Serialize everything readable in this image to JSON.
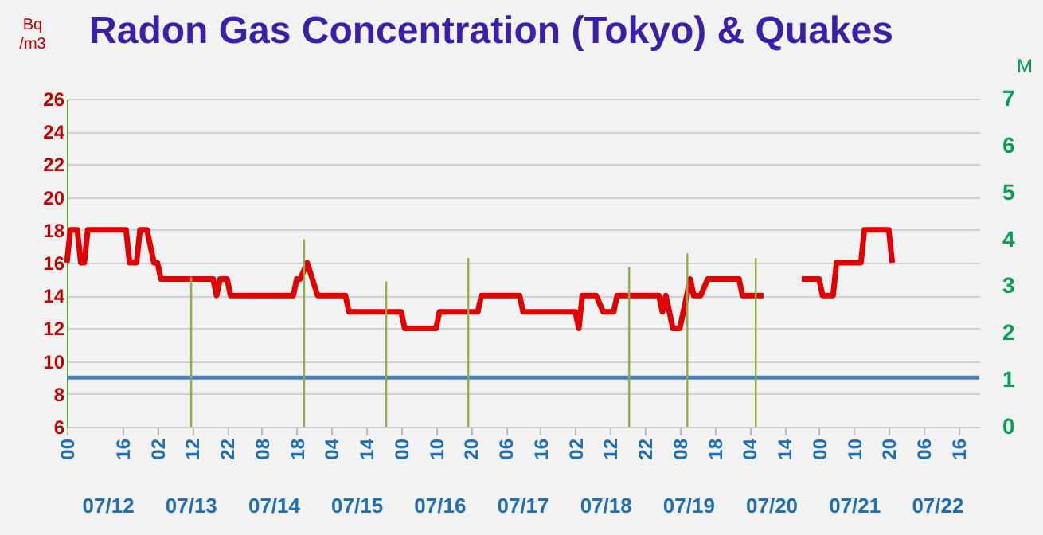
{
  "chart_data": {
    "type": "line",
    "title": "Radon Gas Concentration (Tokyo) & Quakes",
    "ylabel": "Bq /m3",
    "y2label": "M",
    "xlim": [
      0,
      262
    ],
    "xticks": [
      {
        "value": 0,
        "label": "00"
      },
      {
        "value": 16,
        "label": "16"
      },
      {
        "value": 26,
        "label": "02"
      },
      {
        "value": 36,
        "label": "12"
      },
      {
        "value": 46,
        "label": "22"
      },
      {
        "value": 56,
        "label": "08"
      },
      {
        "value": 66,
        "label": "18"
      },
      {
        "value": 76,
        "label": "04"
      },
      {
        "value": 86,
        "label": "14"
      },
      {
        "value": 96,
        "label": "00"
      },
      {
        "value": 106,
        "label": "10"
      },
      {
        "value": 116,
        "label": "20"
      },
      {
        "value": 126,
        "label": "06"
      },
      {
        "value": 136,
        "label": "16"
      },
      {
        "value": 146,
        "label": "02"
      },
      {
        "value": 156,
        "label": "12"
      },
      {
        "value": 166,
        "label": "22"
      },
      {
        "value": 176,
        "label": "08"
      },
      {
        "value": 186,
        "label": "18"
      },
      {
        "value": 196,
        "label": "04"
      },
      {
        "value": 206,
        "label": "14"
      },
      {
        "value": 216,
        "label": "00"
      },
      {
        "value": 226,
        "label": "10"
      },
      {
        "value": 236,
        "label": "20"
      },
      {
        "value": 246,
        "label": "06"
      },
      {
        "value": 256,
        "label": "16"
      }
    ],
    "annotations": [
      "07/12",
      "07/13",
      "07/14",
      "07/15",
      "07/16",
      "07/17",
      "07/18",
      "07/19",
      "07/20",
      "07/21",
      "07/22"
    ],
    "ylim": [
      6,
      26
    ],
    "yticks": [
      6,
      8,
      10,
      12,
      14,
      16,
      18,
      20,
      22,
      24,
      26
    ],
    "y2lim": [
      0,
      7
    ],
    "y2ticks": [
      0,
      1,
      2,
      3,
      4,
      5,
      6,
      7
    ],
    "grid": "y",
    "series": [
      {
        "color": "#e00000",
        "x": [
          0,
          1,
          3,
          4,
          5,
          6,
          17,
          18,
          20,
          21,
          23,
          25,
          26,
          27,
          42,
          43,
          44,
          46,
          47,
          65,
          66,
          67,
          69,
          72,
          80,
          81,
          96,
          97,
          106,
          107,
          118,
          119,
          130,
          131,
          146,
          147,
          148,
          152,
          154,
          157,
          158,
          170,
          171,
          172,
          173,
          174,
          176,
          178,
          179,
          180,
          182,
          184,
          193,
          194,
          200,
          205,
          211,
          216,
          217,
          220,
          221,
          228,
          229,
          236,
          237
        ],
        "values": [
          16,
          18,
          18,
          16,
          16,
          18,
          18,
          16,
          16,
          18,
          18,
          16,
          16,
          15,
          15,
          14,
          15,
          15,
          14,
          14,
          15,
          15,
          16,
          14,
          14,
          13,
          13,
          12,
          12,
          13,
          13,
          14,
          14,
          13,
          13,
          12,
          14,
          14,
          13,
          13,
          14,
          14,
          13,
          14,
          13,
          12,
          12,
          14,
          15,
          14,
          14,
          15,
          15,
          14,
          14,
          null,
          15,
          15,
          14,
          14,
          16,
          16,
          18,
          18,
          16
        ]
      },
      {
        "type": "bar",
        "axis": "y2",
        "color": "#8db040",
        "x": [
          34,
          67,
          91,
          115,
          162,
          179,
          199
        ],
        "values": [
          3.2,
          4.0,
          3.1,
          3.6,
          3.4,
          3.7,
          3.6
        ]
      }
    ],
    "ref_lines": [
      {
        "axis": "y",
        "value": 9,
        "color": "#4a7ebb"
      }
    ]
  }
}
